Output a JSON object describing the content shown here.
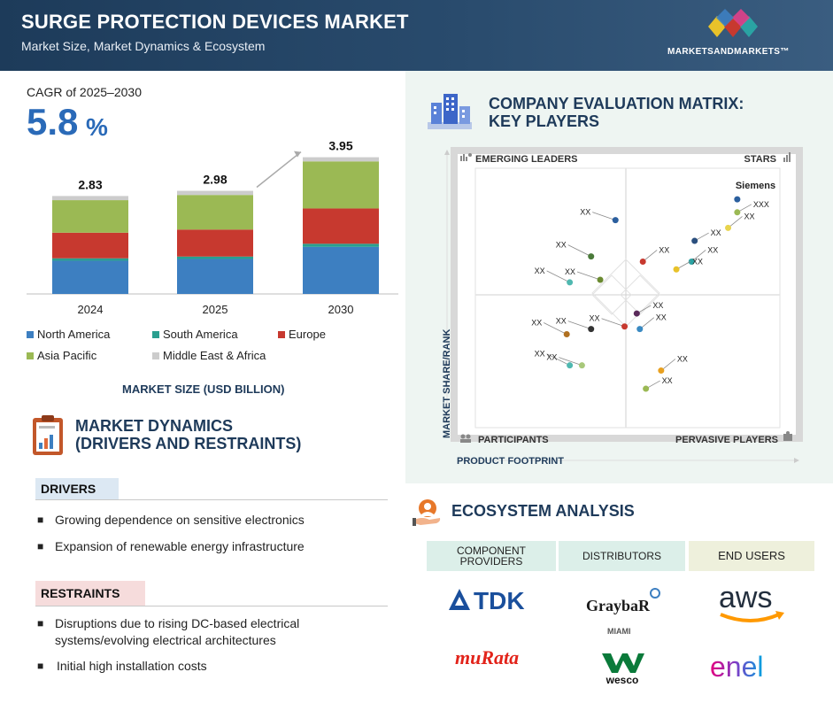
{
  "header": {
    "title": "SURGE PROTECTION DEVICES MARKET",
    "subtitle": "Market Size, Market Dynamics & Ecosystem",
    "brand": "MARKETSANDMARKETS™"
  },
  "cagr": {
    "label": "CAGR of 2025–2030",
    "value": "5.8",
    "unit": "%"
  },
  "chart_data": {
    "type": "bar",
    "stacked": true,
    "categories": [
      "2024",
      "2025",
      "2030"
    ],
    "totals": [
      "2.83",
      "2.98",
      "3.95"
    ],
    "series": [
      {
        "name": "North America",
        "color": "#3d7fc1",
        "values": [
          0.96,
          1.01,
          1.36
        ]
      },
      {
        "name": "South America",
        "color": "#2a9f8f",
        "values": [
          0.07,
          0.07,
          0.09
        ]
      },
      {
        "name": "Europe",
        "color": "#c7392f",
        "values": [
          0.74,
          0.78,
          1.02
        ]
      },
      {
        "name": "Asia Pacific",
        "color": "#9bb954",
        "values": [
          0.94,
          1.0,
          1.36
        ]
      },
      {
        "name": "Middle East & Africa",
        "color": "#cccccc",
        "values": [
          0.12,
          0.12,
          0.12
        ]
      }
    ],
    "ylim": [
      0,
      4.4
    ],
    "xlabel": "MARKET SIZE (USD BILLION)"
  },
  "dynamics": {
    "title_line1": "MARKET DYNAMICS",
    "title_line2": "(DRIVERS AND RESTRAINTS)",
    "drivers_label": "DRIVERS",
    "drivers": [
      "Growing dependence on sensitive electronics",
      "Expansion of renewable energy infrastructure"
    ],
    "restraints_label": "RESTRAINTS",
    "restraints": [
      "Disruptions due to rising DC-based electrical systems/evolving electrical architectures",
      "Initial high installation costs"
    ]
  },
  "evaluation": {
    "title_line1": "COMPANY EVALUATION MATRIX:",
    "title_line2": "KEY PLAYERS",
    "quadrants": {
      "top_left": "EMERGING LEADERS",
      "top_right": "STARS",
      "bottom_left": "PARTICIPANTS",
      "bottom_right": "PERVASIVE PLAYERS"
    },
    "y_axis": "MARKET SHARE/RANK",
    "x_axis": "PRODUCT FOOTPRINT",
    "points": [
      {
        "label": "Siemens",
        "bold": true,
        "color": "#2b5f9e",
        "x": 0.86,
        "y": 0.88
      },
      {
        "label": "XXX",
        "color": "#9bb954",
        "x": 0.86,
        "y": 0.83
      },
      {
        "label": "XX",
        "color": "#e8d44d",
        "x": 0.83,
        "y": 0.77
      },
      {
        "label": "XX",
        "color": "#2b4f7e",
        "x": 0.72,
        "y": 0.72
      },
      {
        "label": "XX",
        "color": "#2aa3a3",
        "x": 0.71,
        "y": 0.64
      },
      {
        "label": "XX",
        "color": "#e8c22a",
        "x": 0.66,
        "y": 0.61
      },
      {
        "label": "XX",
        "color": "#c7392f",
        "x": 0.55,
        "y": 0.64
      },
      {
        "label": "XX",
        "color": "#2b5f9e",
        "x": 0.46,
        "y": 0.8
      },
      {
        "label": "XX",
        "color": "#4a7a3a",
        "x": 0.38,
        "y": 0.66
      },
      {
        "label": "XX",
        "color": "#6a8a30",
        "x": 0.41,
        "y": 0.57
      },
      {
        "label": "XX",
        "color": "#4fb8b0",
        "x": 0.31,
        "y": 0.56
      },
      {
        "label": "XX",
        "color": "#5a2a5a",
        "x": 0.53,
        "y": 0.44
      },
      {
        "label": "XX",
        "color": "#3a8ac2",
        "x": 0.54,
        "y": 0.38
      },
      {
        "label": "XX",
        "color": "#333333",
        "x": 0.38,
        "y": 0.38
      },
      {
        "label": "XX",
        "color": "#b07020",
        "x": 0.3,
        "y": 0.36
      },
      {
        "label": "XX",
        "color": "#c7392f",
        "x": 0.49,
        "y": 0.39
      },
      {
        "label": "XX",
        "color": "#4fb8b0",
        "x": 0.31,
        "y": 0.24
      },
      {
        "label": "XX",
        "color": "#a8c87a",
        "x": 0.35,
        "y": 0.24
      },
      {
        "label": "XX",
        "color": "#e8a020",
        "x": 0.61,
        "y": 0.22
      },
      {
        "label": "XX",
        "color": "#9bb954",
        "x": 0.56,
        "y": 0.15
      }
    ]
  },
  "ecosystem": {
    "title": "ECOSYSTEM ANALYSIS",
    "headers": [
      {
        "label": "COMPONENT PROVIDERS",
        "color": "#dcefe9"
      },
      {
        "label": "DISTRIBUTORS",
        "color": "#dcefe9"
      },
      {
        "label": "END USERS",
        "color": "#eef0dc"
      }
    ],
    "logos": {
      "tdk": "TDK",
      "graybar": "GraybaR",
      "miami": "MIAMI",
      "aws": "aws",
      "murata": "muRata",
      "wesco": "wesco",
      "enel": "enel"
    }
  }
}
